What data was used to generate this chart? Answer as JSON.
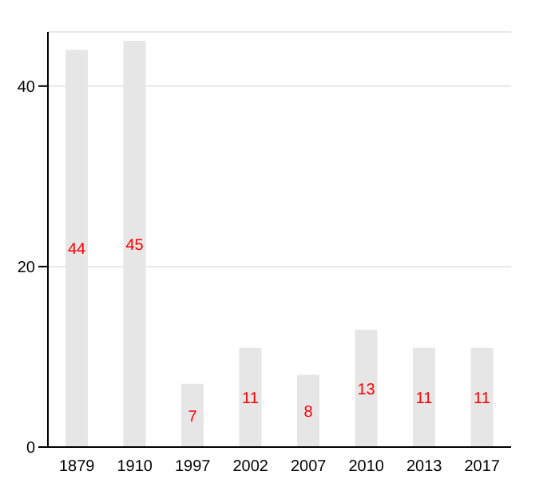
{
  "chart_data": {
    "type": "bar",
    "categories": [
      "1879",
      "1910",
      "1997",
      "2002",
      "2007",
      "2010",
      "2013",
      "2017"
    ],
    "values": [
      44,
      45,
      7,
      11,
      8,
      13,
      11,
      11
    ],
    "color": "#e6e6e6",
    "ylim": [
      0,
      46
    ],
    "yticks": [
      0,
      20,
      40
    ],
    "grid": "y",
    "data_labels": true
  }
}
